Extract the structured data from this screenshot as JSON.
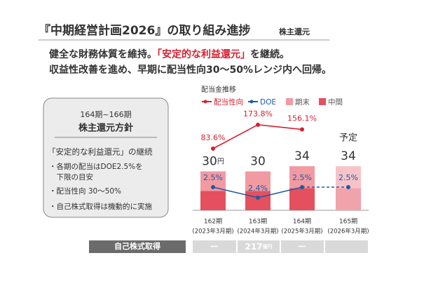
{
  "header": {
    "title": "『中期経営計画2026』の取り組み進捗",
    "tag": "株主還元"
  },
  "message": {
    "line1_a": "健全な財務体質を維持。",
    "line1_highlight": "「安定的な利益還元」",
    "line1_b": "を継続。",
    "line2": "収益性改善を進め、早期に配当性向30～50%レンジ内へ回帰。"
  },
  "policy": {
    "period": "164期~166期",
    "title": "株主還元方針",
    "lead": "「安定的な利益還元」の継続",
    "items": [
      "・各期の配当はDOE2.5%を",
      "　下限の目安",
      "・配当性向 30～50%",
      "・自己株式取得は機動的に実施"
    ]
  },
  "chart_data": {
    "type": "bar",
    "title": "配当金推移",
    "categories": [
      "162期",
      "163期",
      "164期",
      "165期"
    ],
    "category_sublabels": [
      "(2023年3月期)",
      "(2024年3月期)",
      "(2025年3月期)",
      "(2026年3月期)"
    ],
    "forecast": [
      false,
      false,
      false,
      true
    ],
    "forecast_label": "予定",
    "totals": [
      30,
      30,
      34,
      34
    ],
    "total_unit": "円",
    "series": [
      {
        "name": "中間",
        "color": "#e4505e",
        "forecast_color": "#f0a3aa",
        "values": [
          15,
          15,
          17,
          17
        ]
      },
      {
        "name": "期末",
        "color": "#f29aa2",
        "forecast_color": "#f6c4c8",
        "values": [
          15,
          15,
          17,
          17
        ]
      },
      {
        "name": "配当性向",
        "type": "line",
        "color": "#d7202f",
        "values": [
          83.6,
          173.8,
          156.1,
          null
        ],
        "value_labels": [
          "83.6%",
          "173.8%",
          "156.1%",
          null
        ]
      },
      {
        "name": "DOE",
        "type": "line",
        "color": "#1f5aa6",
        "values": [
          2.5,
          2.4,
          2.5,
          2.5
        ],
        "value_labels": [
          "2.5%",
          "2.4%",
          "2.5%",
          "2.5%"
        ]
      }
    ]
  },
  "buyback": {
    "label": "自己株式取得",
    "values": [
      "ー",
      "217",
      "ー"
    ],
    "unit": "億円"
  }
}
